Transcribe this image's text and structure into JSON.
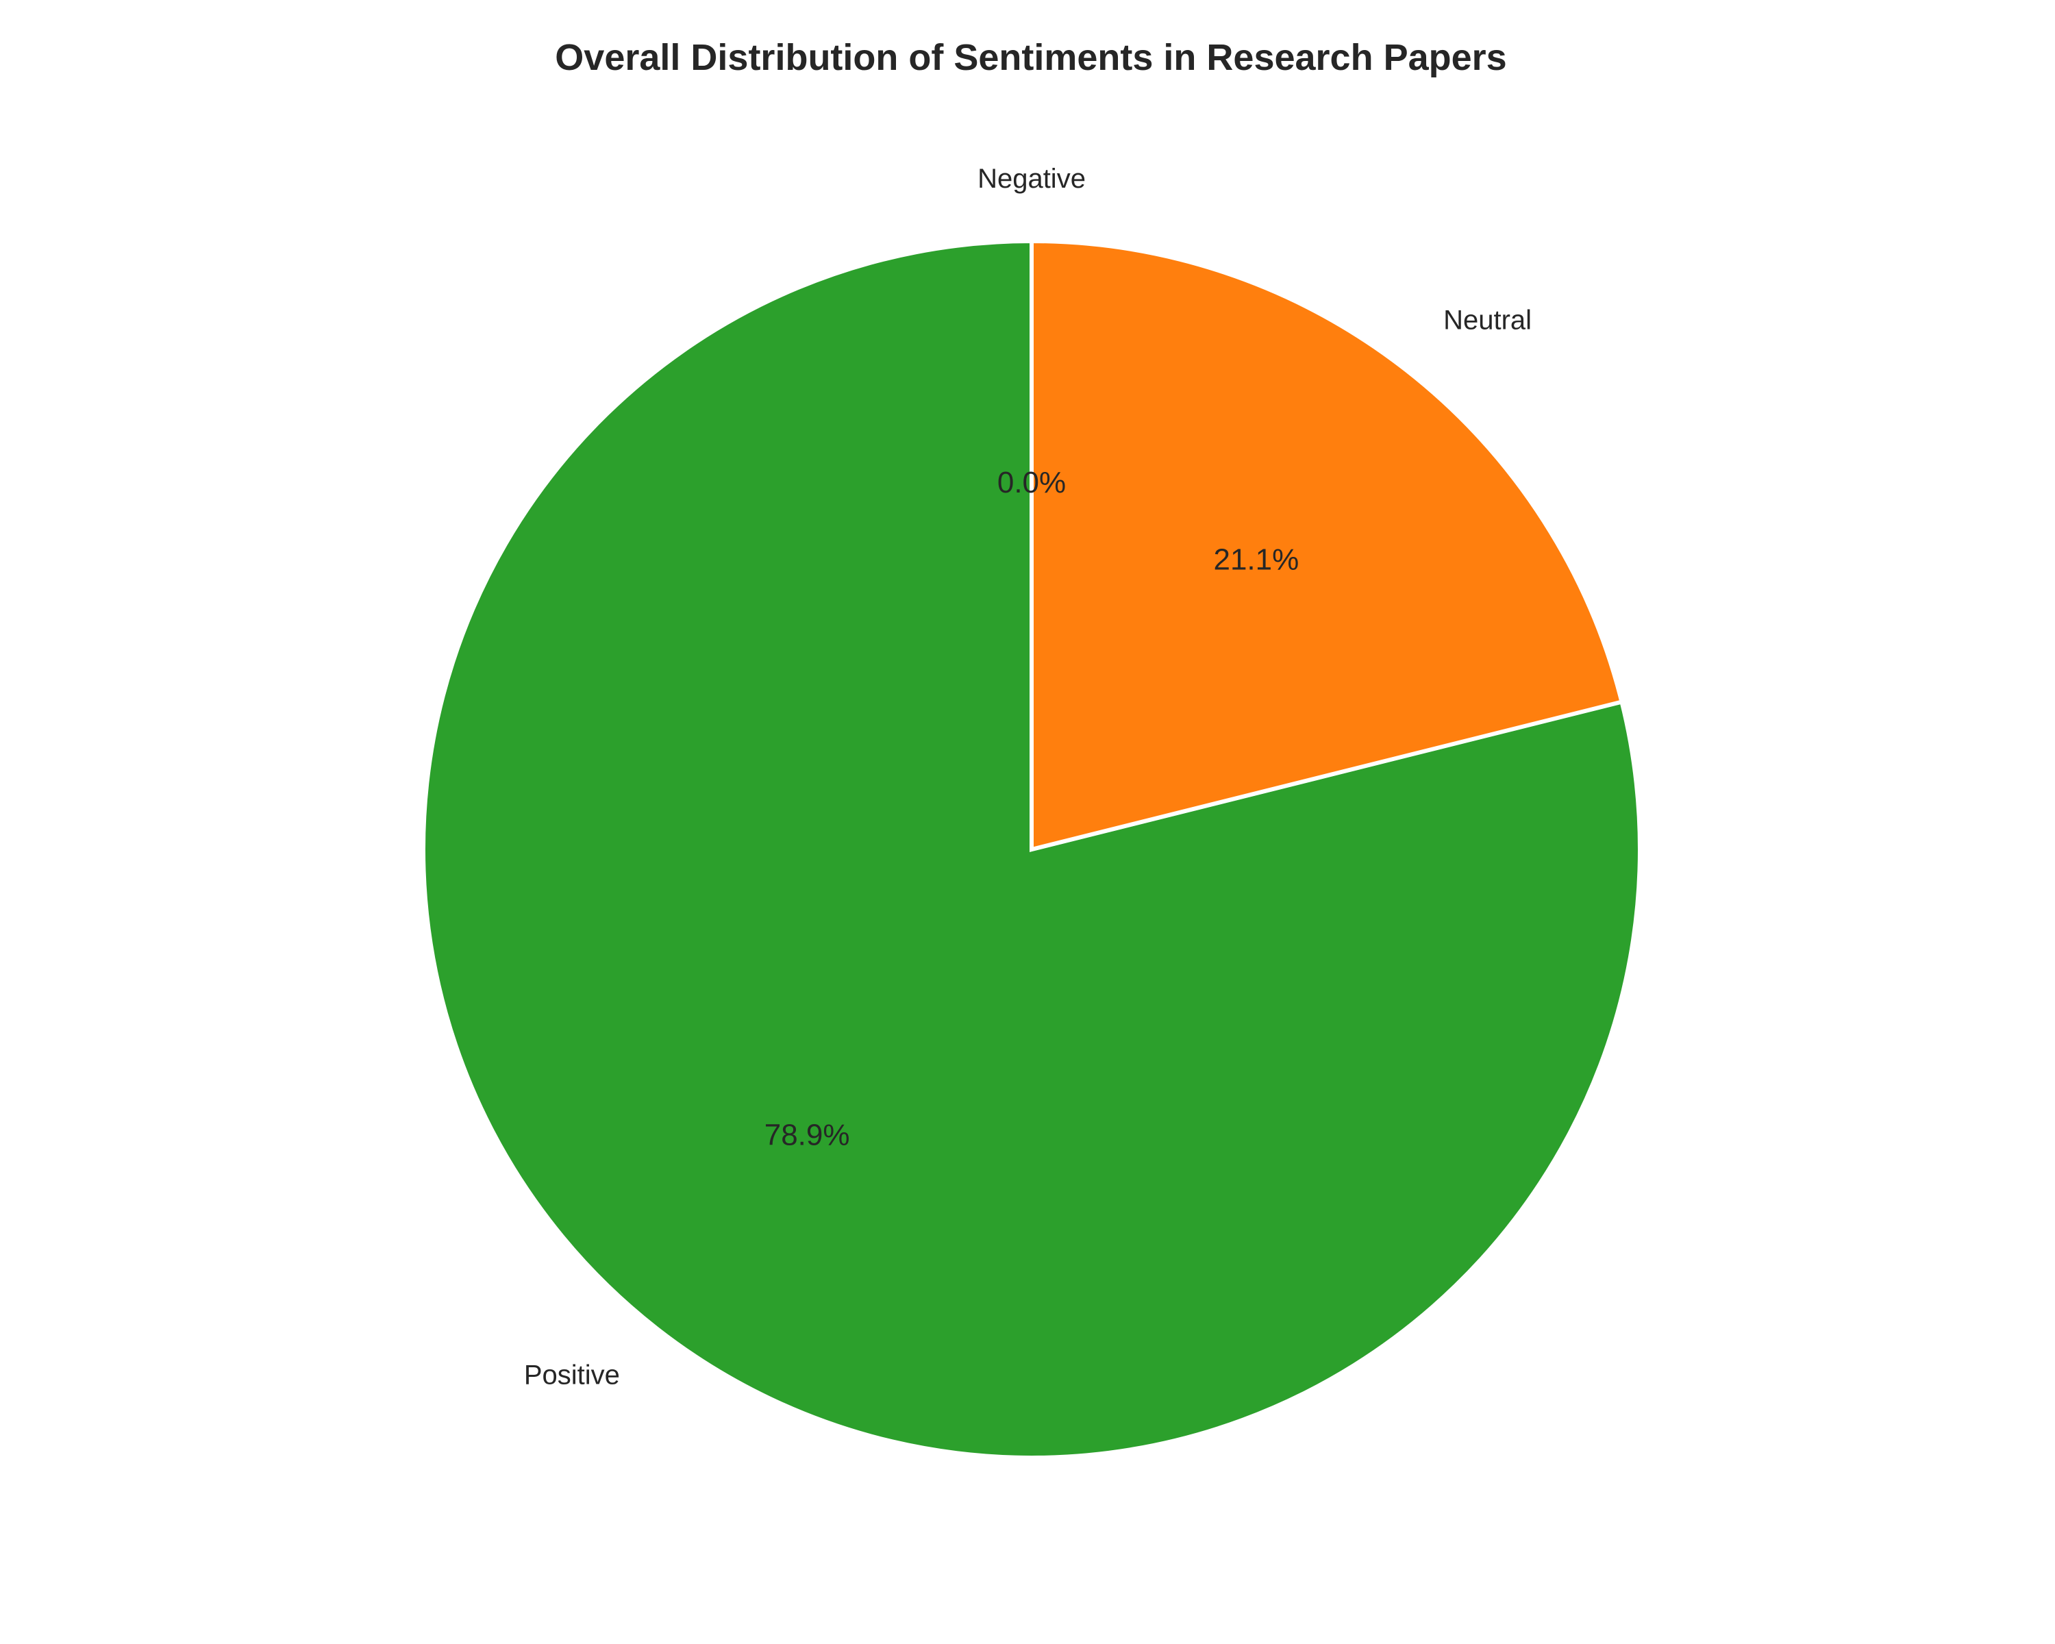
{
  "chart_data": {
    "type": "pie",
    "title": "Overall Distribution of Sentiments in Research Papers",
    "categories": [
      "Positive",
      "Neutral",
      "Negative"
    ],
    "values": [
      78.9,
      21.1,
      0.0
    ],
    "percent_labels": [
      "78.9%",
      "21.1%",
      "0.0%"
    ],
    "colors": [
      "#2ca02c",
      "#ff7f0e",
      "#d62728"
    ],
    "start_angle_deg": 90,
    "direction": "counterclockwise",
    "legend": "none"
  }
}
